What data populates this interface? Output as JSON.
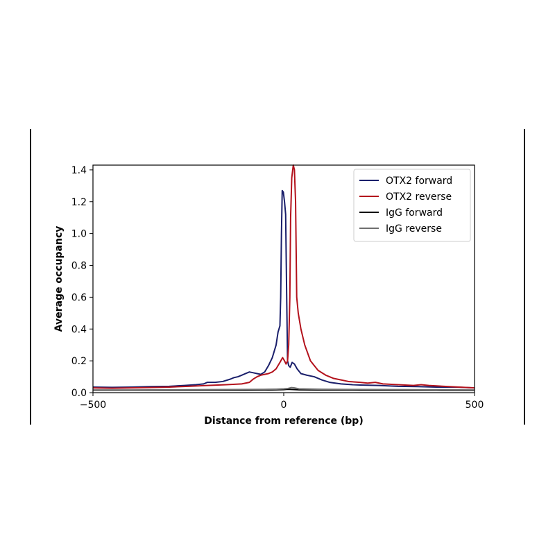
{
  "chart_data": {
    "type": "line",
    "title": "",
    "xlabel": "Distance from reference (bp)",
    "ylabel": "Average occupancy",
    "xlim": [
      -500,
      500
    ],
    "ylim": [
      0,
      1.43
    ],
    "x_ticks": [
      -500,
      0,
      500
    ],
    "x_tick_labels": [
      "−500",
      "0",
      "500"
    ],
    "y_ticks": [
      0.0,
      0.2,
      0.4,
      0.6,
      0.8,
      1.0,
      1.2,
      1.4
    ],
    "y_tick_labels": [
      "0.0",
      "0.2",
      "0.4",
      "0.6",
      "0.8",
      "1.0",
      "1.2",
      "1.4"
    ],
    "grid": false,
    "legend_position": "top-right",
    "series": [
      {
        "name": "OTX2 forward",
        "color": "#1a1f6b",
        "points": [
          [
            -500,
            0.035
          ],
          [
            -450,
            0.033
          ],
          [
            -400,
            0.035
          ],
          [
            -350,
            0.038
          ],
          [
            -300,
            0.04
          ],
          [
            -260,
            0.045
          ],
          [
            -230,
            0.05
          ],
          [
            -210,
            0.055
          ],
          [
            -200,
            0.065
          ],
          [
            -180,
            0.065
          ],
          [
            -160,
            0.07
          ],
          [
            -140,
            0.085
          ],
          [
            -130,
            0.095
          ],
          [
            -120,
            0.1
          ],
          [
            -110,
            0.11
          ],
          [
            -100,
            0.12
          ],
          [
            -90,
            0.13
          ],
          [
            -80,
            0.125
          ],
          [
            -70,
            0.12
          ],
          [
            -60,
            0.115
          ],
          [
            -50,
            0.13
          ],
          [
            -40,
            0.17
          ],
          [
            -30,
            0.22
          ],
          [
            -20,
            0.3
          ],
          [
            -15,
            0.38
          ],
          [
            -10,
            0.42
          ],
          [
            -8,
            0.6
          ],
          [
            -6,
            1.0
          ],
          [
            -4,
            1.27
          ],
          [
            -1,
            1.26
          ],
          [
            2,
            1.2
          ],
          [
            5,
            1.12
          ],
          [
            8,
            0.55
          ],
          [
            10,
            0.2
          ],
          [
            13,
            0.17
          ],
          [
            17,
            0.16
          ],
          [
            22,
            0.19
          ],
          [
            28,
            0.18
          ],
          [
            35,
            0.15
          ],
          [
            45,
            0.12
          ],
          [
            60,
            0.11
          ],
          [
            80,
            0.1
          ],
          [
            100,
            0.08
          ],
          [
            120,
            0.065
          ],
          [
            150,
            0.055
          ],
          [
            180,
            0.05
          ],
          [
            200,
            0.048
          ],
          [
            250,
            0.045
          ],
          [
            300,
            0.04
          ],
          [
            350,
            0.038
          ],
          [
            400,
            0.035
          ],
          [
            450,
            0.035
          ],
          [
            500,
            0.03
          ]
        ]
      },
      {
        "name": "OTX2 reverse",
        "color": "#b3121c",
        "points": [
          [
            -500,
            0.03
          ],
          [
            -450,
            0.028
          ],
          [
            -400,
            0.03
          ],
          [
            -350,
            0.032
          ],
          [
            -300,
            0.035
          ],
          [
            -250,
            0.04
          ],
          [
            -200,
            0.045
          ],
          [
            -150,
            0.05
          ],
          [
            -110,
            0.055
          ],
          [
            -90,
            0.065
          ],
          [
            -80,
            0.085
          ],
          [
            -70,
            0.1
          ],
          [
            -60,
            0.11
          ],
          [
            -50,
            0.115
          ],
          [
            -40,
            0.12
          ],
          [
            -30,
            0.13
          ],
          [
            -20,
            0.15
          ],
          [
            -10,
            0.19
          ],
          [
            -3,
            0.22
          ],
          [
            2,
            0.2
          ],
          [
            6,
            0.18
          ],
          [
            10,
            0.2
          ],
          [
            13,
            0.3
          ],
          [
            16,
            0.6
          ],
          [
            18,
            1.1
          ],
          [
            21,
            1.35
          ],
          [
            25,
            1.43
          ],
          [
            28,
            1.4
          ],
          [
            31,
            1.2
          ],
          [
            34,
            0.6
          ],
          [
            38,
            0.5
          ],
          [
            45,
            0.4
          ],
          [
            55,
            0.3
          ],
          [
            70,
            0.2
          ],
          [
            90,
            0.14
          ],
          [
            110,
            0.11
          ],
          [
            130,
            0.09
          ],
          [
            150,
            0.08
          ],
          [
            170,
            0.07
          ],
          [
            200,
            0.065
          ],
          [
            220,
            0.06
          ],
          [
            240,
            0.065
          ],
          [
            260,
            0.055
          ],
          [
            300,
            0.05
          ],
          [
            340,
            0.045
          ],
          [
            360,
            0.05
          ],
          [
            380,
            0.045
          ],
          [
            420,
            0.04
          ],
          [
            460,
            0.035
          ],
          [
            500,
            0.03
          ]
        ]
      },
      {
        "name": "IgG forward",
        "color": "#000000",
        "points": [
          [
            -500,
            0.015
          ],
          [
            -400,
            0.015
          ],
          [
            -300,
            0.015
          ],
          [
            -200,
            0.016
          ],
          [
            -100,
            0.016
          ],
          [
            -40,
            0.017
          ],
          [
            -20,
            0.018
          ],
          [
            0,
            0.019
          ],
          [
            10,
            0.021
          ],
          [
            20,
            0.02
          ],
          [
            40,
            0.018
          ],
          [
            100,
            0.017
          ],
          [
            200,
            0.016
          ],
          [
            300,
            0.015
          ],
          [
            400,
            0.015
          ],
          [
            500,
            0.014
          ]
        ]
      },
      {
        "name": "IgG reverse",
        "color": "#6e6e6e",
        "points": [
          [
            -500,
            0.017
          ],
          [
            -400,
            0.017
          ],
          [
            -300,
            0.018
          ],
          [
            -200,
            0.019
          ],
          [
            -100,
            0.02
          ],
          [
            -40,
            0.021
          ],
          [
            -20,
            0.022
          ],
          [
            0,
            0.024
          ],
          [
            10,
            0.026
          ],
          [
            20,
            0.032
          ],
          [
            28,
            0.03
          ],
          [
            40,
            0.024
          ],
          [
            100,
            0.021
          ],
          [
            200,
            0.02
          ],
          [
            300,
            0.019
          ],
          [
            400,
            0.018
          ],
          [
            500,
            0.017
          ]
        ]
      }
    ]
  }
}
